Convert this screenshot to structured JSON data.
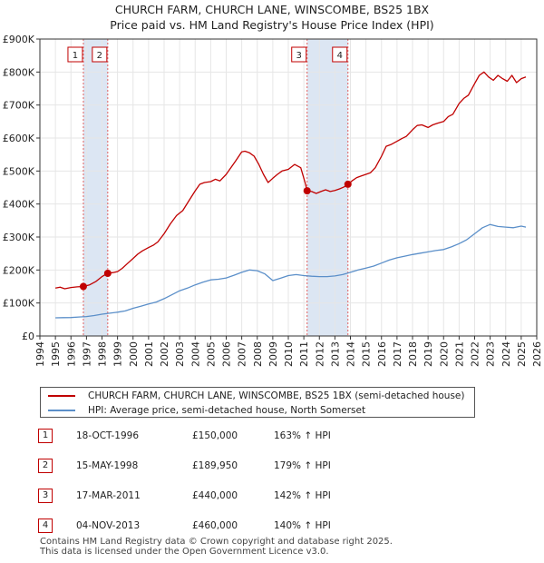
{
  "header": {
    "title_line1": "CHURCH FARM, CHURCH LANE, WINSCOMBE, BS25 1BX",
    "title_line2": "Price paid vs. HM Land Registry's House Price Index (HPI)"
  },
  "colors": {
    "price_line": "#c00000",
    "hpi_line": "#5b8fc9",
    "shade": "#dce6f3",
    "marker_vline": "#e06060",
    "grid": "#e6e6e6"
  },
  "chart_data": {
    "type": "line",
    "title": "Price paid vs. HM Land Registry's House Price Index (HPI)",
    "xlabel": "",
    "ylabel": "",
    "xlim": [
      1994,
      2026
    ],
    "ylim": [
      0,
      900000
    ],
    "grid": true,
    "x_ticks": [
      "1994",
      "1995",
      "1996",
      "1997",
      "1998",
      "1999",
      "2000",
      "2001",
      "2002",
      "2003",
      "2004",
      "2005",
      "2006",
      "2007",
      "2008",
      "2009",
      "2010",
      "2011",
      "2012",
      "2013",
      "2014",
      "2015",
      "2016",
      "2017",
      "2018",
      "2019",
      "2020",
      "2021",
      "2022",
      "2023",
      "2024",
      "2025",
      "2026"
    ],
    "y_ticks": [
      {
        "value": 0,
        "label": "£0"
      },
      {
        "value": 100000,
        "label": "£100K"
      },
      {
        "value": 200000,
        "label": "£200K"
      },
      {
        "value": 300000,
        "label": "£300K"
      },
      {
        "value": 400000,
        "label": "£400K"
      },
      {
        "value": 500000,
        "label": "£500K"
      },
      {
        "value": 600000,
        "label": "£600K"
      },
      {
        "value": 700000,
        "label": "£700K"
      },
      {
        "value": 800000,
        "label": "£800K"
      },
      {
        "value": 900000,
        "label": "£900K"
      }
    ],
    "shaded_ranges": [
      [
        1996.8,
        1998.37
      ],
      [
        2011.21,
        2013.84
      ]
    ],
    "markers": [
      {
        "label": "1",
        "x": 1996.8,
        "y": 150000
      },
      {
        "label": "2",
        "x": 1998.37,
        "y": 189950
      },
      {
        "label": "3",
        "x": 2011.21,
        "y": 440000
      },
      {
        "label": "4",
        "x": 2013.84,
        "y": 460000
      }
    ],
    "series": [
      {
        "name": "CHURCH FARM, CHURCH LANE, WINSCOMBE, BS25 1BX (semi-detached house)",
        "color": "#c00000",
        "x": [
          1995.0,
          1995.3,
          1995.6,
          1996.0,
          1996.4,
          1996.8,
          1997.2,
          1997.6,
          1998.0,
          1998.37,
          1998.7,
          1999.0,
          1999.3,
          1999.6,
          2000.0,
          2000.3,
          2000.6,
          2001.0,
          2001.3,
          2001.6,
          2002.0,
          2002.4,
          2002.8,
          2003.2,
          2003.6,
          2004.0,
          2004.3,
          2004.6,
          2005.0,
          2005.3,
          2005.6,
          2006.0,
          2006.3,
          2006.6,
          2007.0,
          2007.2,
          2007.5,
          2007.8,
          2008.1,
          2008.4,
          2008.7,
          2009.0,
          2009.3,
          2009.6,
          2010.0,
          2010.4,
          2010.8,
          2011.1,
          2011.21,
          2011.5,
          2011.8,
          2012.1,
          2012.4,
          2012.7,
          2013.0,
          2013.3,
          2013.6,
          2013.84,
          2014.1,
          2014.4,
          2014.7,
          2015.0,
          2015.3,
          2015.6,
          2016.0,
          2016.3,
          2016.6,
          2017.0,
          2017.3,
          2017.6,
          2018.0,
          2018.3,
          2018.6,
          2019.0,
          2019.3,
          2019.6,
          2020.0,
          2020.3,
          2020.6,
          2021.0,
          2021.3,
          2021.6,
          2022.0,
          2022.3,
          2022.6,
          2022.9,
          2023.2,
          2023.5,
          2023.8,
          2024.1,
          2024.4,
          2024.7,
          2025.0,
          2025.3
        ],
        "values": [
          145000,
          148000,
          143000,
          147000,
          149000,
          150000,
          155000,
          165000,
          180000,
          189950,
          192000,
          195000,
          205000,
          218000,
          235000,
          248000,
          258000,
          268000,
          275000,
          285000,
          310000,
          340000,
          365000,
          380000,
          410000,
          440000,
          460000,
          465000,
          468000,
          475000,
          470000,
          490000,
          510000,
          530000,
          558000,
          560000,
          555000,
          545000,
          520000,
          490000,
          465000,
          478000,
          490000,
          500000,
          505000,
          520000,
          510000,
          462000,
          440000,
          438000,
          432000,
          438000,
          443000,
          438000,
          441000,
          446000,
          452000,
          460000,
          470000,
          480000,
          485000,
          490000,
          495000,
          510000,
          545000,
          575000,
          580000,
          590000,
          598000,
          605000,
          625000,
          638000,
          640000,
          632000,
          640000,
          645000,
          650000,
          665000,
          672000,
          705000,
          720000,
          730000,
          765000,
          790000,
          800000,
          785000,
          775000,
          790000,
          780000,
          772000,
          790000,
          768000,
          780000,
          785000
        ]
      },
      {
        "name": "HPI: Average price, semi-detached house, North Somerset",
        "color": "#5b8fc9",
        "x": [
          1995.0,
          1995.5,
          1996.0,
          1996.5,
          1997.0,
          1997.5,
          1998.0,
          1998.5,
          1999.0,
          1999.5,
          2000.0,
          2000.5,
          2001.0,
          2001.5,
          2002.0,
          2002.5,
          2003.0,
          2003.5,
          2004.0,
          2004.5,
          2005.0,
          2005.5,
          2006.0,
          2006.5,
          2007.0,
          2007.5,
          2008.0,
          2008.5,
          2009.0,
          2009.5,
          2010.0,
          2010.5,
          2011.0,
          2011.5,
          2012.0,
          2012.5,
          2013.0,
          2013.5,
          2014.0,
          2014.5,
          2015.0,
          2015.5,
          2016.0,
          2016.5,
          2017.0,
          2017.5,
          2018.0,
          2018.5,
          2019.0,
          2019.5,
          2020.0,
          2020.5,
          2021.0,
          2021.5,
          2022.0,
          2022.5,
          2023.0,
          2023.5,
          2024.0,
          2024.5,
          2025.0,
          2025.3
        ],
        "values": [
          55000,
          55500,
          56000,
          57500,
          59000,
          62000,
          66000,
          69000,
          72000,
          76000,
          84000,
          90000,
          97000,
          103000,
          113000,
          125000,
          137000,
          145000,
          155000,
          163000,
          170000,
          172000,
          176000,
          184000,
          193000,
          200000,
          198000,
          188000,
          168000,
          175000,
          183000,
          186000,
          183000,
          181000,
          180000,
          180000,
          182000,
          186000,
          193000,
          200000,
          206000,
          212000,
          221000,
          230000,
          237000,
          242000,
          247000,
          251000,
          255000,
          259000,
          262000,
          270000,
          280000,
          292000,
          310000,
          328000,
          338000,
          332000,
          330000,
          328000,
          333000,
          330000
        ]
      }
    ]
  },
  "legend": {
    "price_label": "CHURCH FARM, CHURCH LANE, WINSCOMBE, BS25 1BX (semi-detached house)",
    "hpi_label": "HPI: Average price, semi-detached house, North Somerset"
  },
  "sales": [
    {
      "num": "1",
      "date": "18-OCT-1996",
      "price": "£150,000",
      "hpi": "163% ↑ HPI"
    },
    {
      "num": "2",
      "date": "15-MAY-1998",
      "price": "£189,950",
      "hpi": "179% ↑ HPI"
    },
    {
      "num": "3",
      "date": "17-MAR-2011",
      "price": "£440,000",
      "hpi": "142% ↑ HPI"
    },
    {
      "num": "4",
      "date": "04-NOV-2013",
      "price": "£460,000",
      "hpi": "140% ↑ HPI"
    }
  ],
  "footer": {
    "line1": "Contains HM Land Registry data © Crown copyright and database right 2025.",
    "line2": "This data is licensed under the Open Government Licence v3.0."
  }
}
